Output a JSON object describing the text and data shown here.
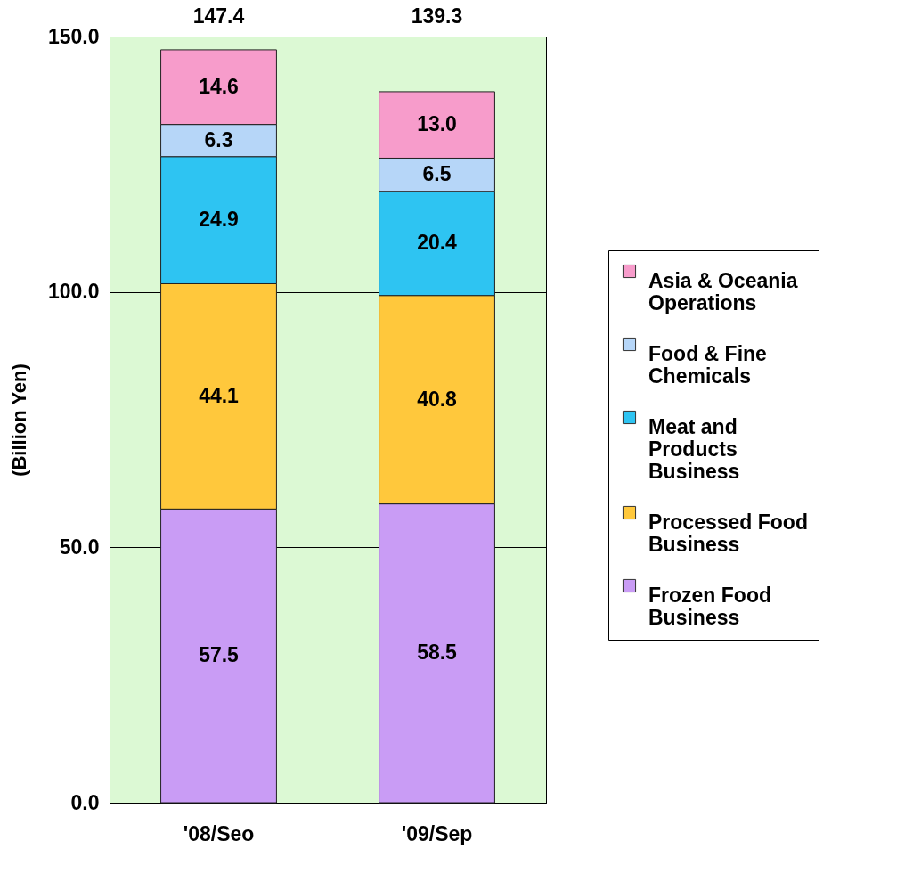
{
  "chart_data": {
    "type": "bar",
    "stacked": true,
    "ylabel": "(Billion Yen)",
    "categories": [
      "'08/Seo",
      "'09/Sep"
    ],
    "series": [
      {
        "name": "Frozen Food Business",
        "color": "#c99cf5",
        "values": [
          57.5,
          58.5
        ]
      },
      {
        "name": "Processed Food Business",
        "color": "#ffc83c",
        "values": [
          44.1,
          40.8
        ]
      },
      {
        "name": "Meat and Products Business",
        "color": "#2ec4f2",
        "values": [
          24.9,
          20.4
        ]
      },
      {
        "name": "Food & Fine Chemicals",
        "color": "#b6d6f8",
        "values": [
          6.3,
          6.5
        ]
      },
      {
        "name": "Asia & Oceania Operations",
        "color": "#f79ccb",
        "values": [
          14.6,
          13.0
        ]
      }
    ],
    "value_labels": [
      [
        "57.5",
        "58.5"
      ],
      [
        "44.1",
        "40.8"
      ],
      [
        "24.9",
        "20.4"
      ],
      [
        "6.3",
        "6.5"
      ],
      [
        "14.6",
        "13.0"
      ]
    ],
    "totals": [
      "147.4",
      "139.3"
    ],
    "ylim": [
      0,
      150
    ],
    "yticks": [
      {
        "value": 0,
        "label": "0.0"
      },
      {
        "value": 50,
        "label": "50.0"
      },
      {
        "value": 100,
        "label": "100.0"
      },
      {
        "value": 150,
        "label": "150.0"
      }
    ],
    "grid": "y",
    "legend": "right"
  }
}
